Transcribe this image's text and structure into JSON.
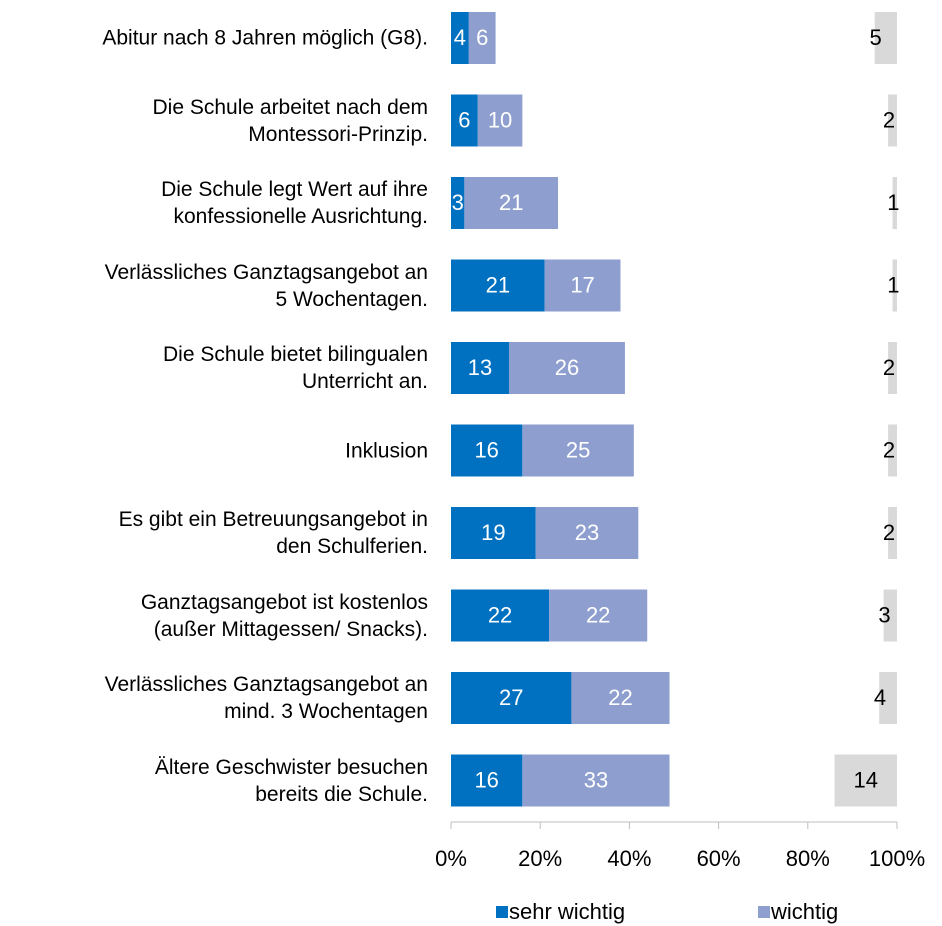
{
  "chart_data": {
    "type": "stacked_bar_horizontal",
    "categories": [
      "Abitur nach 8 Jahren möglich (G8).",
      "Die Schule arbeitet nach dem\nMontessori-Prinzip.",
      "Die Schule legt Wert auf ihre\nkonfessionelle Ausrichtung.",
      "Verlässliches Ganztagsangebot an\n5 Wochentagen.",
      "Die Schule bietet bilingualen\nUnterricht an.",
      "Inklusion",
      "Es gibt ein Betreuungsangebot in\nden Schulferien.",
      "Ganztagsangebot ist kostenlos\n(außer Mittagessen/ Snacks).",
      "Verlässliches Ganztagsangebot an\nmind. 3 Wochentagen",
      "Ältere Geschwister besuchen\nbereits die Schule."
    ],
    "series": [
      {
        "name": "sehr wichtig",
        "color": "#0070c0",
        "values": [
          4,
          6,
          3,
          21,
          13,
          16,
          19,
          22,
          27,
          16
        ]
      },
      {
        "name": "wichtig",
        "color": "#8e9fcf",
        "values": [
          6,
          10,
          21,
          17,
          26,
          25,
          23,
          22,
          22,
          33
        ]
      },
      {
        "color": "#d9d9d9",
        "values": [
          5,
          2,
          1,
          1,
          2,
          2,
          2,
          3,
          4,
          14
        ]
      }
    ],
    "xlim": [
      0,
      100
    ],
    "xticks": [
      {
        "value": 0,
        "label": "0%"
      },
      {
        "value": 20,
        "label": "20%"
      },
      {
        "value": 40,
        "label": "40%"
      },
      {
        "value": 60,
        "label": "60%"
      },
      {
        "value": 80,
        "label": "80%"
      },
      {
        "value": 100,
        "label": "100%"
      }
    ]
  }
}
